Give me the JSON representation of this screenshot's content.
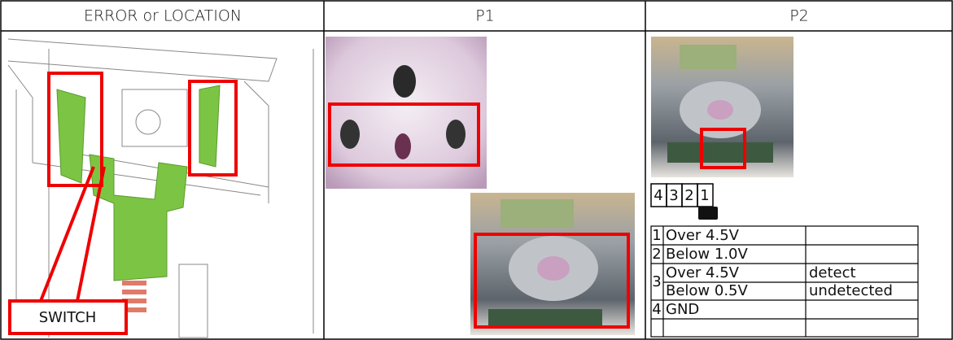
{
  "table": {
    "headers": [
      "ERROR  or  LOCATION",
      "P1",
      "P2"
    ]
  },
  "location": {
    "callout": "SWITCH"
  },
  "connector": {
    "pins": [
      "4",
      "3",
      "2",
      "1"
    ]
  },
  "pin_table": [
    {
      "pin": "1",
      "voltage": "Over 4.5V"
    },
    {
      "pin": "2",
      "voltage": "Below 1.0V"
    },
    {
      "pin": "3",
      "states": [
        {
          "voltage": "Over 4.5V",
          "result": "detect"
        },
        {
          "voltage": "Below 0.5V",
          "result": "undetected"
        }
      ]
    },
    {
      "pin": "4",
      "voltage": "GND"
    }
  ]
}
